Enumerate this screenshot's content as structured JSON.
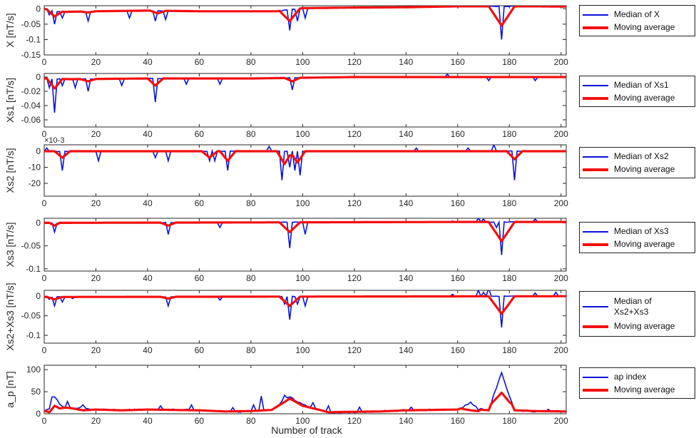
{
  "chart_data": {
    "type": "line",
    "shared_xlabel": "Number of track",
    "xlim": [
      0,
      202
    ],
    "xticks": [
      0,
      20,
      40,
      60,
      80,
      100,
      120,
      140,
      160,
      180,
      200
    ],
    "colors": {
      "median": "#0a12d8",
      "moving_average": "#f50f0f"
    },
    "panels": [
      {
        "ylabel": "X [nT/s]",
        "ylim": [
          -0.15,
          0.01
        ],
        "yticks": [
          -0.15,
          -0.1,
          -0.05,
          0
        ],
        "ytick_labels": [
          "-0.15",
          "-0.1",
          "-0.05",
          "0"
        ],
        "legend": [
          "Median of X",
          "Moving average"
        ],
        "base": [
          [
            0,
            0
          ],
          [
            4,
            -0.008
          ],
          [
            8,
            -0.01
          ],
          [
            20,
            -0.008
          ],
          [
            40,
            -0.006
          ],
          [
            60,
            -0.008
          ],
          [
            80,
            -0.008
          ],
          [
            90,
            -0.008
          ],
          [
            100,
            0.002
          ],
          [
            120,
            0.004
          ],
          [
            140,
            0.005
          ],
          [
            160,
            0.008
          ],
          [
            180,
            0.008
          ],
          [
            190,
            0.008
          ],
          [
            202,
            0.007
          ]
        ],
        "spikes": [
          [
            2,
            -0.02
          ],
          [
            4,
            -0.05
          ],
          [
            7,
            -0.03
          ],
          [
            17,
            -0.04
          ],
          [
            33,
            -0.03
          ],
          [
            43,
            -0.04
          ],
          [
            47,
            -0.035
          ],
          [
            95,
            -0.07
          ],
          [
            98,
            -0.04
          ],
          [
            101,
            -0.03
          ],
          [
            166,
            0.012
          ],
          [
            170,
            0.015
          ],
          [
            177,
            -0.1
          ],
          [
            198,
            0.012
          ]
        ],
        "ma_dips": [
          [
            4,
            -0.025,
            3
          ],
          [
            17,
            -0.012,
            3
          ],
          [
            44,
            -0.015,
            3
          ],
          [
            95,
            -0.04,
            4
          ],
          [
            177,
            -0.055,
            5
          ]
        ]
      },
      {
        "ylabel": "Xs1 [nT/s]",
        "ylim": [
          -0.07,
          0.005
        ],
        "yticks": [
          -0.06,
          -0.04,
          -0.02,
          0
        ],
        "ytick_labels": [
          "-0.06",
          "-0.04",
          "-0.02",
          "0"
        ],
        "legend": [
          "Median of Xs1",
          "Moving average"
        ],
        "base": [
          [
            0,
            -0.002
          ],
          [
            10,
            -0.003
          ],
          [
            40,
            -0.002
          ],
          [
            80,
            -0.002
          ],
          [
            120,
            0
          ],
          [
            160,
            0
          ],
          [
            202,
            0
          ]
        ],
        "spikes": [
          [
            2,
            -0.015
          ],
          [
            4,
            -0.05
          ],
          [
            7,
            -0.012
          ],
          [
            12,
            -0.015
          ],
          [
            17,
            -0.02
          ],
          [
            30,
            -0.012
          ],
          [
            43,
            -0.035
          ],
          [
            55,
            -0.01
          ],
          [
            68,
            -0.01
          ],
          [
            96,
            -0.018
          ],
          [
            156,
            0.004
          ],
          [
            172,
            -0.005
          ],
          [
            190,
            -0.005
          ]
        ],
        "ma_dips": [
          [
            4,
            -0.016,
            3
          ],
          [
            17,
            -0.006,
            3
          ],
          [
            43,
            -0.012,
            3
          ],
          [
            96,
            -0.006,
            3
          ]
        ]
      },
      {
        "ylabel": "Xs2 [nT/s]",
        "ylim": [
          -0.028,
          0.004
        ],
        "yticks": [
          -0.02,
          -0.01,
          0
        ],
        "ytick_labels": [
          "-20",
          "-10",
          "0"
        ],
        "exponent_label": "×10-3",
        "legend": [
          "Median of Xs2",
          "Moving average"
        ],
        "base": [
          [
            0,
            0
          ],
          [
            202,
            0
          ]
        ],
        "spikes": [
          [
            1,
            0.002
          ],
          [
            7,
            -0.012
          ],
          [
            21,
            -0.006
          ],
          [
            43,
            -0.004
          ],
          [
            48,
            -0.006
          ],
          [
            64,
            -0.006
          ],
          [
            66,
            -0.006
          ],
          [
            71,
            -0.012
          ],
          [
            87,
            0.003
          ],
          [
            92,
            -0.018
          ],
          [
            95,
            -0.01
          ],
          [
            97,
            -0.012
          ],
          [
            99,
            -0.015
          ],
          [
            144,
            0.002
          ],
          [
            164,
            0.002
          ],
          [
            174,
            0.004
          ],
          [
            182,
            -0.018
          ]
        ],
        "ma_dips": [
          [
            7,
            -0.004,
            3
          ],
          [
            64,
            -0.004,
            3
          ],
          [
            71,
            -0.006,
            3
          ],
          [
            93,
            -0.008,
            3
          ],
          [
            98,
            -0.007,
            3
          ],
          [
            182,
            -0.005,
            3
          ]
        ]
      },
      {
        "ylabel": "Xs3 [nT/s]",
        "ylim": [
          -0.105,
          0.01
        ],
        "yticks": [
          -0.1,
          -0.05,
          0
        ],
        "ytick_labels": [
          "-0.1",
          "-0.05",
          "0"
        ],
        "legend": [
          "Median of Xs3",
          "Moving average"
        ],
        "base": [
          [
            0,
            0
          ],
          [
            160,
            0.002
          ],
          [
            202,
            0.002
          ]
        ],
        "spikes": [
          [
            4,
            -0.02
          ],
          [
            48,
            -0.025
          ],
          [
            68,
            -0.01
          ],
          [
            95,
            -0.055
          ],
          [
            101,
            -0.025
          ],
          [
            158,
            0.004
          ],
          [
            168,
            0.01
          ],
          [
            170,
            0.008
          ],
          [
            175,
            -0.01
          ],
          [
            177,
            -0.07
          ],
          [
            190,
            0.008
          ]
        ],
        "ma_dips": [
          [
            4,
            -0.006,
            2
          ],
          [
            48,
            -0.006,
            3
          ],
          [
            95,
            -0.02,
            4
          ],
          [
            177,
            -0.04,
            5
          ]
        ]
      },
      {
        "ylabel": "Xs2+Xs3 [nT/s]",
        "ylim": [
          -0.12,
          0.015
        ],
        "yticks": [
          -0.1,
          -0.05,
          0
        ],
        "ytick_labels": [
          "-0.1",
          "-0.05",
          "0"
        ],
        "legend": [
          "Median of\nXs2+Xs3",
          "Moving average"
        ],
        "base": [
          [
            0,
            -0.002
          ],
          [
            202,
            0
          ]
        ],
        "spikes": [
          [
            2,
            -0.008
          ],
          [
            4,
            -0.025
          ],
          [
            7,
            -0.015
          ],
          [
            11,
            -0.006
          ],
          [
            48,
            -0.025
          ],
          [
            68,
            -0.01
          ],
          [
            93,
            -0.02
          ],
          [
            95,
            -0.06
          ],
          [
            98,
            -0.02
          ],
          [
            101,
            -0.025
          ],
          [
            158,
            0.005
          ],
          [
            168,
            0.015
          ],
          [
            170,
            0.01
          ],
          [
            172,
            0.02
          ],
          [
            177,
            -0.08
          ],
          [
            190,
            0.008
          ],
          [
            198,
            0.01
          ]
        ],
        "ma_dips": [
          [
            4,
            -0.008,
            3
          ],
          [
            48,
            -0.006,
            3
          ],
          [
            95,
            -0.025,
            4
          ],
          [
            177,
            -0.045,
            5
          ]
        ]
      },
      {
        "ylabel": "a_p [nT]",
        "ylim": [
          0,
          110
        ],
        "yticks": [
          0,
          50,
          100
        ],
        "ytick_labels": [
          "0",
          "50",
          "100"
        ],
        "legend": [
          "ap index",
          "Moving average"
        ],
        "base": [
          [
            0,
            7
          ],
          [
            2,
            12
          ],
          [
            4,
            38
          ],
          [
            6,
            22
          ],
          [
            8,
            15
          ],
          [
            20,
            10
          ],
          [
            30,
            8
          ],
          [
            40,
            10
          ],
          [
            50,
            9
          ],
          [
            60,
            8
          ],
          [
            70,
            5
          ],
          [
            80,
            6
          ],
          [
            88,
            9
          ],
          [
            95,
            40
          ],
          [
            100,
            20
          ],
          [
            106,
            10
          ],
          [
            110,
            3
          ],
          [
            130,
            5
          ],
          [
            140,
            8
          ],
          [
            150,
            9
          ],
          [
            160,
            10
          ],
          [
            165,
            25
          ],
          [
            168,
            10
          ],
          [
            172,
            8
          ],
          [
            177,
            95
          ],
          [
            180,
            40
          ],
          [
            182,
            8
          ],
          [
            190,
            6
          ],
          [
            202,
            5
          ]
        ],
        "spikes": [
          [
            3,
            38
          ],
          [
            9,
            28
          ],
          [
            15,
            20
          ],
          [
            45,
            18
          ],
          [
            57,
            20
          ],
          [
            73,
            14
          ],
          [
            81,
            20
          ],
          [
            84,
            40
          ],
          [
            93,
            42
          ],
          [
            104,
            25
          ],
          [
            110,
            18
          ],
          [
            122,
            15
          ],
          [
            142,
            15
          ],
          [
            155,
            10
          ],
          [
            169,
            12
          ],
          [
            195,
            10
          ]
        ],
        "ma_dips": [
          [
            4,
            20,
            4
          ],
          [
            15,
            8,
            5
          ],
          [
            93,
            30,
            5
          ],
          [
            165,
            8,
            4
          ],
          [
            177,
            55,
            4
          ]
        ]
      }
    ]
  }
}
